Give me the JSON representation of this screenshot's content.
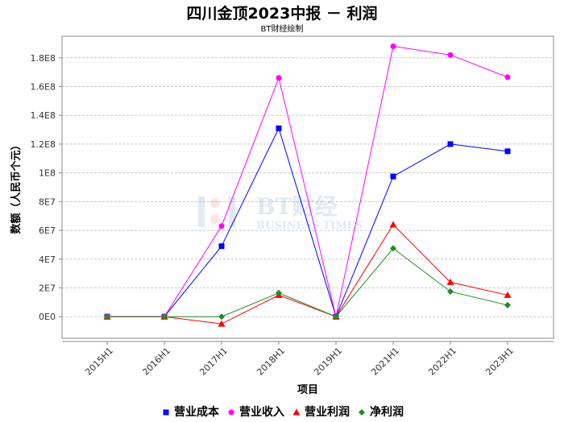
{
  "title": "四川金顶2023中报 － 利润",
  "subtitle": "BT财经绘制",
  "watermark": {
    "main": "BT财经",
    "sub": "BUSINESS TIMES"
  },
  "chart_data": {
    "type": "line",
    "categories": [
      "2015H1",
      "2016H1",
      "2017H1",
      "2018H1",
      "2019H1",
      "2021H1",
      "2022H1",
      "2023H1"
    ],
    "xlabel": "项目",
    "ylabel": "数额（人民币个元）",
    "ylim": [
      -15000000,
      195000000
    ],
    "yticks": [
      0,
      20000000,
      40000000,
      60000000,
      80000000,
      100000000,
      120000000,
      140000000,
      160000000,
      180000000
    ],
    "ytick_labels": [
      "0E0",
      "2E7",
      "4E7",
      "6E7",
      "8E7",
      "1E8",
      "1.2E8",
      "1.4E8",
      "1.6E8",
      "1.8E8"
    ],
    "grid": true,
    "legend_position": "bottom",
    "series": [
      {
        "name": "营业成本",
        "color": "#0000ff",
        "marker": "square",
        "values": [
          0,
          0,
          49000000,
          131000000,
          0,
          97500000,
          120000000,
          115000000
        ]
      },
      {
        "name": "营业收入",
        "color": "#ff00ff",
        "marker": "circle",
        "values": [
          0,
          0,
          63000000,
          166000000,
          0,
          188000000,
          182000000,
          166500000
        ]
      },
      {
        "name": "营业利润",
        "color": "#ff0000",
        "marker": "triangle",
        "values": [
          0,
          0,
          -5000000,
          15000000,
          0,
          64000000,
          24000000,
          15000000
        ]
      },
      {
        "name": "净利润",
        "color": "#228b22",
        "marker": "diamond",
        "values": [
          0,
          0,
          0,
          16500000,
          0,
          47500000,
          17500000,
          8000000
        ]
      }
    ]
  }
}
